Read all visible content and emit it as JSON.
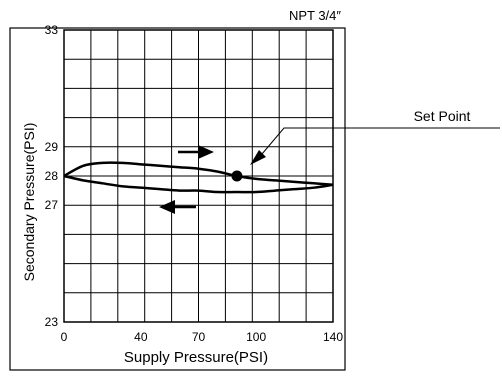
{
  "chart_data": {
    "type": "line",
    "title": "NPT 3/4″",
    "xlabel": "Supply Pressure(PSI)",
    "ylabel": "Secondary Pressure(PSI)",
    "xlim": [
      0,
      140
    ],
    "ylim": [
      23,
      33
    ],
    "x_ticks": [
      "0",
      "40",
      "70",
      "100",
      "140"
    ],
    "x_tick_values": [
      0,
      40,
      70,
      100,
      140
    ],
    "y_ticks": [
      "33",
      "29",
      "28",
      "27",
      "23"
    ],
    "y_tick_values": [
      33,
      29,
      28,
      27,
      23
    ],
    "grid": true,
    "series": [
      {
        "values_x": [
          0,
          10,
          20,
          30,
          40,
          50,
          60,
          70,
          80,
          90,
          100,
          110,
          120,
          130,
          140
        ],
        "values_y": [
          28.0,
          28.35,
          28.45,
          28.45,
          28.4,
          28.35,
          28.3,
          28.25,
          28.15,
          28.0,
          27.9,
          27.85,
          27.8,
          27.75,
          27.7
        ]
      },
      {
        "values_x": [
          0,
          10,
          20,
          30,
          40,
          50,
          60,
          70,
          80,
          90,
          100,
          110,
          120,
          130,
          140
        ],
        "values_y": [
          28.0,
          27.85,
          27.75,
          27.65,
          27.6,
          27.55,
          27.5,
          27.5,
          27.45,
          27.45,
          27.45,
          27.5,
          27.55,
          27.6,
          27.7
        ]
      }
    ],
    "set_point": {
      "x": 90,
      "y": 28.0
    },
    "annotations": {
      "set_point_label": "Set Point"
    },
    "flow_arrows": [
      {
        "direction": "right",
        "x": 60,
        "y": 28.8
      },
      {
        "direction": "left",
        "x": 55,
        "y": 26.8
      }
    ]
  }
}
